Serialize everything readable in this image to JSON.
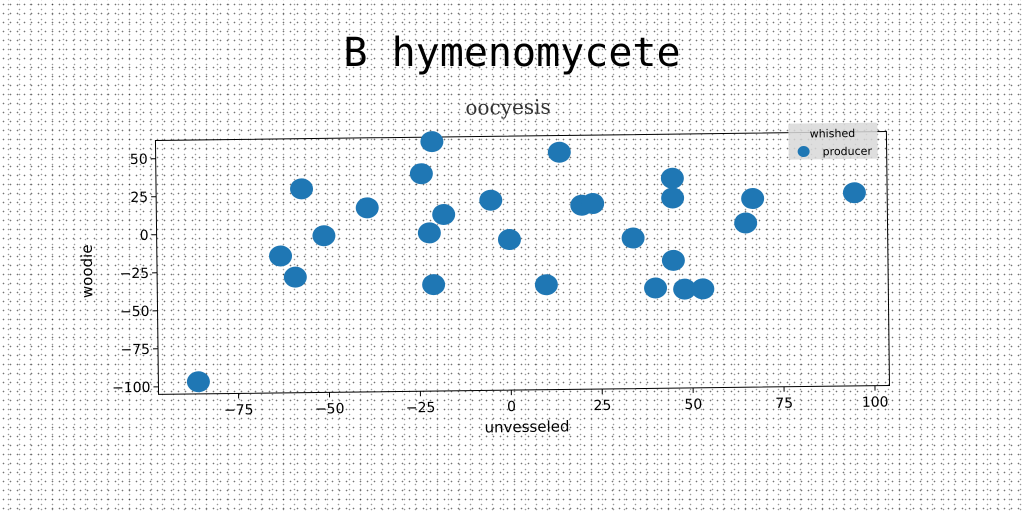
{
  "suptitle": "B hymenomycete",
  "chart_data": {
    "type": "scatter",
    "title": "oocyesis",
    "xlabel": "unvesseled",
    "ylabel": "woodie",
    "xlim": [
      -97,
      104
    ],
    "ylim": [
      -105,
      62
    ],
    "xticks": [
      -75,
      -50,
      -25,
      0,
      25,
      50,
      75,
      100
    ],
    "xtick_labels": [
      "−75",
      "−50",
      "−25",
      "0",
      "25",
      "50",
      "75",
      "100"
    ],
    "yticks": [
      50,
      25,
      0,
      -25,
      -50,
      -75,
      -100
    ],
    "ytick_labels": [
      "50",
      "25",
      "0",
      "−25",
      "−50",
      "−75",
      "−100"
    ],
    "grid": false,
    "legend": {
      "title": "whished",
      "placement": "top-right",
      "entries": [
        "producer"
      ]
    },
    "series": [
      {
        "name": "producer",
        "color": "#1f77b4",
        "points": [
          {
            "x": -86,
            "y": -97
          },
          {
            "x": -63,
            "y": -15
          },
          {
            "x": -59,
            "y": -29
          },
          {
            "x": -57,
            "y": 29
          },
          {
            "x": -51,
            "y": -2
          },
          {
            "x": -39,
            "y": 16
          },
          {
            "x": -24,
            "y": 38
          },
          {
            "x": -22,
            "y": -1
          },
          {
            "x": -21,
            "y": 59
          },
          {
            "x": -21,
            "y": -35
          },
          {
            "x": -18,
            "y": 11
          },
          {
            "x": -5,
            "y": 20
          },
          {
            "x": 0,
            "y": -6
          },
          {
            "x": 10,
            "y": -36
          },
          {
            "x": 14,
            "y": 51
          },
          {
            "x": 20,
            "y": 16
          },
          {
            "x": 23,
            "y": 17
          },
          {
            "x": 34,
            "y": -6
          },
          {
            "x": 40,
            "y": -39
          },
          {
            "x": 45,
            "y": 33
          },
          {
            "x": 45,
            "y": 20
          },
          {
            "x": 45,
            "y": -21
          },
          {
            "x": 48,
            "y": -40
          },
          {
            "x": 53,
            "y": -40
          },
          {
            "x": 65,
            "y": 3
          },
          {
            "x": 67,
            "y": 19
          },
          {
            "x": 95,
            "y": 22
          }
        ]
      }
    ]
  }
}
